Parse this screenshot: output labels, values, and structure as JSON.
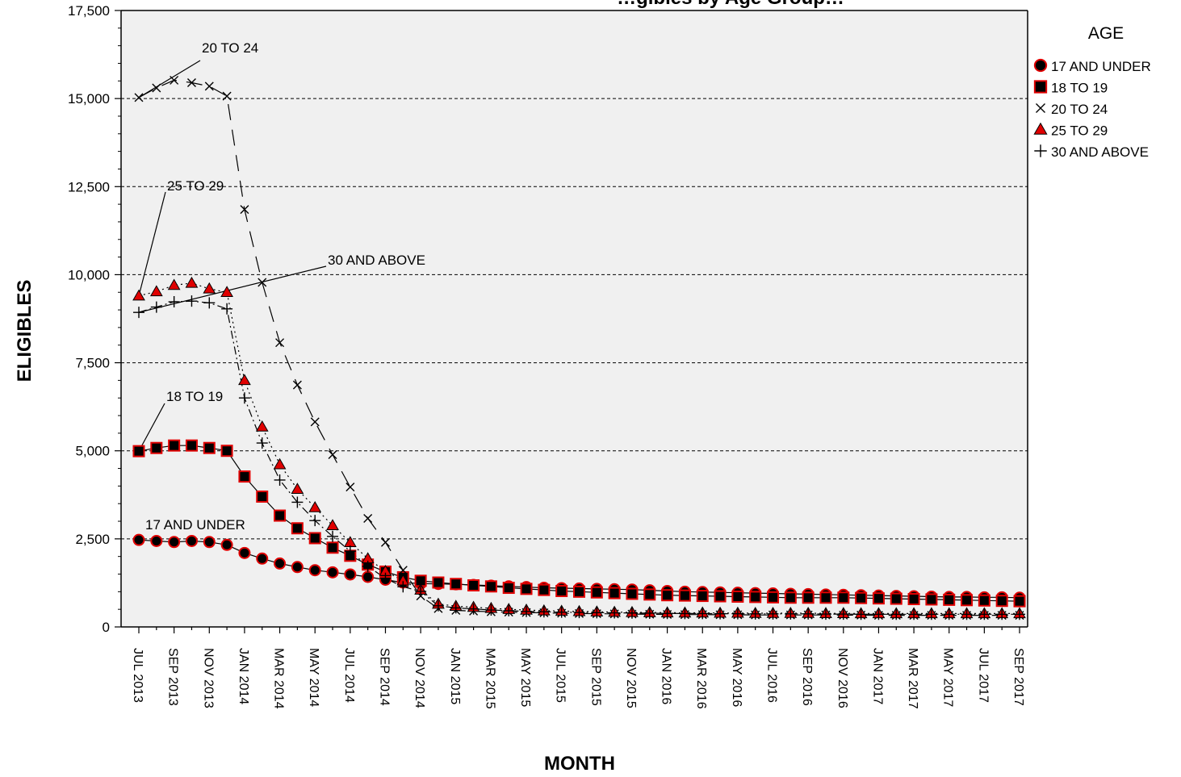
{
  "chart_data": {
    "type": "line",
    "title": "…gibles by Age Group…",
    "xlabel": "MONTH",
    "ylabel": "ELIGIBLES",
    "ylim": [
      0,
      17500
    ],
    "yticks": [
      "0",
      "2,500",
      "5,000",
      "7,500",
      "10,000",
      "12,500",
      "15,000",
      "17,500"
    ],
    "grid": "horizontal dashed",
    "background": "#f0f0f0",
    "legend": {
      "title": "AGE",
      "placement": "right",
      "items": [
        "17 AND UNDER",
        "18 TO 19",
        "20 TO 24",
        "25 TO 29",
        "30 AND ABOVE"
      ]
    },
    "x": [
      "JUL 2013",
      "AUG 2013",
      "SEP 2013",
      "OCT 2013",
      "NOV 2013",
      "DEC 2013",
      "JAN 2014",
      "FEB 2014",
      "MAR 2014",
      "APR 2014",
      "MAY 2014",
      "JUN 2014",
      "JUL 2014",
      "AUG 2014",
      "SEP 2014",
      "OCT 2014",
      "NOV 2014",
      "DEC 2014",
      "JAN 2015",
      "FEB 2015",
      "MAR 2015",
      "APR 2015",
      "MAY 2015",
      "JUN 2015",
      "JUL 2015",
      "AUG 2015",
      "SEP 2015",
      "OCT 2015",
      "NOV 2015",
      "DEC 2015",
      "JAN 2016",
      "FEB 2016",
      "MAR 2016",
      "APR 2016",
      "MAY 2016",
      "JUN 2016",
      "JUL 2016",
      "AUG 2016",
      "SEP 2016",
      "OCT 2016",
      "NOV 2016",
      "DEC 2016",
      "JAN 2017",
      "FEB 2017",
      "MAR 2017",
      "APR 2017",
      "MAY 2017",
      "JUN 2017",
      "JUL 2017",
      "AUG 2017",
      "SEP 2017"
    ],
    "x_tick_labels": [
      "JUL 2013",
      "SEP 2013",
      "NOV 2013",
      "JAN 2014",
      "MAR 2014",
      "MAY 2014",
      "JUL 2014",
      "SEP 2014",
      "NOV 2014",
      "JAN 2015",
      "MAR 2015",
      "MAY 2015",
      "JUL 2015",
      "SEP 2015",
      "NOV 2015",
      "JAN 2016",
      "MAR 2016",
      "MAY 2016",
      "JUL 2016",
      "SEP 2016",
      "NOV 2016",
      "JAN 2017",
      "MAR 2017",
      "MAY 2017",
      "JUL 2017",
      "SEP 2017"
    ],
    "series": [
      {
        "name": "17 AND UNDER",
        "marker": "circle",
        "line": "solid",
        "values": [
          2470,
          2440,
          2410,
          2440,
          2410,
          2330,
          2100,
          1940,
          1800,
          1700,
          1610,
          1550,
          1490,
          1420,
          1340,
          1260,
          1230,
          1220,
          1210,
          1190,
          1170,
          1150,
          1130,
          1110,
          1100,
          1090,
          1080,
          1070,
          1060,
          1040,
          1020,
          1000,
          990,
          980,
          970,
          960,
          950,
          940,
          930,
          920,
          910,
          900,
          890,
          880,
          870,
          860,
          850,
          850,
          840,
          840,
          830
        ]
      },
      {
        "name": "18 TO 19",
        "marker": "square",
        "line": "solid",
        "values": [
          4990,
          5080,
          5150,
          5150,
          5080,
          5000,
          4270,
          3700,
          3160,
          2800,
          2520,
          2250,
          2020,
          1770,
          1570,
          1410,
          1310,
          1260,
          1220,
          1180,
          1150,
          1110,
          1080,
          1050,
          1020,
          1000,
          980,
          960,
          940,
          920,
          900,
          890,
          880,
          870,
          860,
          850,
          840,
          830,
          830,
          830,
          830,
          820,
          810,
          800,
          790,
          780,
          770,
          760,
          750,
          740,
          730
        ]
      },
      {
        "name": "20 TO 24",
        "marker": "x",
        "line": "long-dash",
        "values": [
          15030,
          15300,
          15520,
          15450,
          15350,
          15070,
          11850,
          9780,
          8070,
          6870,
          5820,
          4890,
          3970,
          3080,
          2400,
          1610,
          880,
          520,
          470,
          450,
          430,
          420,
          410,
          400,
          390,
          380,
          375,
          370,
          365,
          360,
          355,
          350,
          350,
          345,
          345,
          340,
          340,
          340,
          340,
          340,
          335,
          335,
          330,
          330,
          330,
          330,
          330,
          330,
          330,
          330,
          330
        ]
      },
      {
        "name": "25 TO 29",
        "marker": "triangle",
        "line": "dotted",
        "values": [
          9400,
          9520,
          9700,
          9760,
          9600,
          9500,
          7000,
          5680,
          4610,
          3910,
          3390,
          2880,
          2400,
          1940,
          1580,
          1310,
          1050,
          650,
          590,
          560,
          530,
          500,
          480,
          460,
          450,
          440,
          430,
          420,
          415,
          410,
          405,
          400,
          400,
          395,
          395,
          390,
          390,
          390,
          390,
          385,
          385,
          380,
          380,
          380,
          380,
          380,
          380,
          380,
          380,
          380,
          380
        ]
      },
      {
        "name": "30 AND ABOVE",
        "marker": "plus",
        "line": "dash-dot",
        "values": [
          8930,
          9080,
          9230,
          9250,
          9200,
          9030,
          6500,
          5220,
          4170,
          3540,
          3020,
          2570,
          2150,
          1720,
          1380,
          1140,
          1010,
          600,
          540,
          510,
          480,
          460,
          440,
          430,
          420,
          410,
          405,
          400,
          395,
          390,
          385,
          380,
          380,
          375,
          375,
          370,
          370,
          370,
          370,
          365,
          365,
          360,
          360,
          360,
          360,
          360,
          360,
          360,
          360,
          360,
          360
        ]
      }
    ],
    "annotations": [
      {
        "text": "20 TO 24",
        "series": 2
      },
      {
        "text": "25 TO 29",
        "series": 3
      },
      {
        "text": "30 AND ABOVE",
        "series": 4
      },
      {
        "text": "18 TO 19",
        "series": 1
      },
      {
        "text": "17 AND UNDER",
        "series": 0
      }
    ],
    "colors": {
      "marker_fill": "#000000",
      "marker_edge": "#e00000",
      "gridline": "#000000",
      "plot_bg": "#f0f0f0"
    }
  }
}
